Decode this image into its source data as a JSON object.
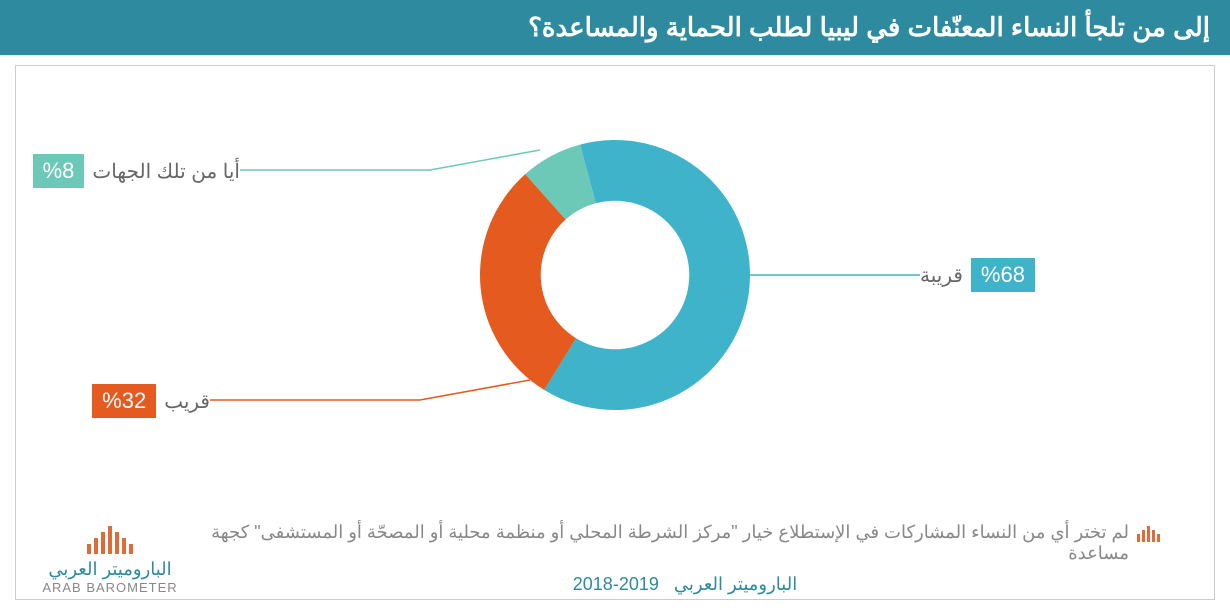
{
  "title": "إلى من تلجأ النساء المعنّفات في ليبيا لطلب الحماية والمساعدة؟",
  "chart": {
    "type": "donut",
    "inner_radius_ratio": 0.55,
    "background_color": "#ffffff",
    "slices": [
      {
        "label": "قريبة",
        "value": 68,
        "display": "%68",
        "color": "#3fb3c9"
      },
      {
        "label": "قريب",
        "value": 32,
        "display": "%32",
        "color": "#e55a1e"
      },
      {
        "label": "أيا من تلك الجهات",
        "value": 8,
        "display": "%8",
        "color": "#6cc9b8"
      }
    ]
  },
  "note": "لم تختر أي من النساء المشاركات في الإستطلاع خيار \"مركز الشرطة المحلي أو منظمة محلية أو المصحّة أو المستشفى\" كجهة مساعدة",
  "source_label": "الباروميتر العربي",
  "date_range": "2019-2018",
  "logo": {
    "ar": "الباروميتر العربي",
    "en": "ARAB BAROMETER"
  },
  "colors": {
    "title_bg": "#2e8a9e",
    "title_text": "#ffffff",
    "label_text": "#666666",
    "accent": "#e06b3a",
    "border": "#cccccc"
  }
}
